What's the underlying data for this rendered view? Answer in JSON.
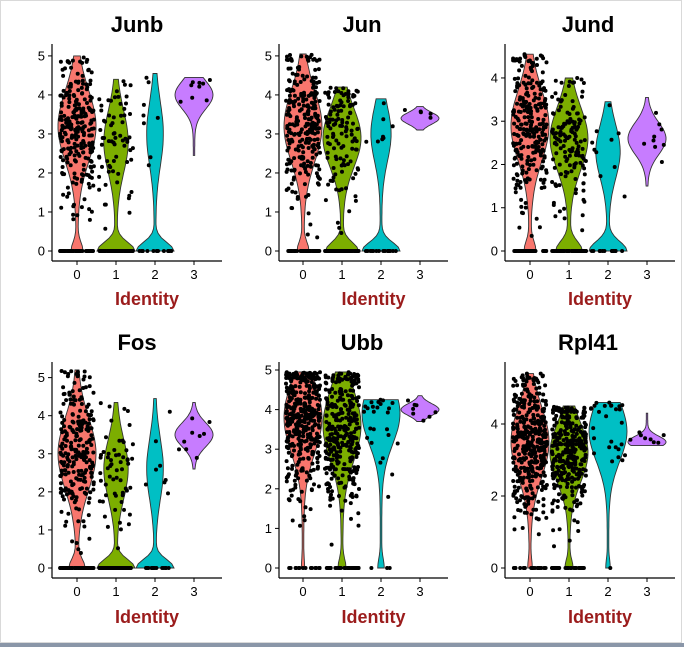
{
  "chart_data": [
    {
      "type": "violin",
      "title": "Junb",
      "xlabel": "Identity",
      "ylabel": "",
      "categories": [
        "0",
        "1",
        "2",
        "3"
      ],
      "yticks": [
        "0",
        "1",
        "2",
        "3",
        "4",
        "5"
      ],
      "ylim": [
        0,
        5.1
      ],
      "colors": [
        "#F8766D",
        "#7CAE00",
        "#00BFC4",
        "#C77CFF"
      ],
      "groups": [
        {
          "name": "0",
          "min": 0,
          "max": 5.0,
          "zero_frac": 0.15,
          "median": 3.2,
          "n_points": 300
        },
        {
          "name": "1",
          "min": 0,
          "max": 4.4,
          "zero_frac": 0.5,
          "median": 2.8,
          "n_points": 140
        },
        {
          "name": "2",
          "min": 0,
          "max": 4.55,
          "zero_frac": 0.6,
          "median": 3.0,
          "n_points": 22
        },
        {
          "name": "3",
          "min": 2.45,
          "max": 4.45,
          "zero_frac": 0,
          "median": 4.0,
          "n_points": 9
        }
      ]
    },
    {
      "type": "violin",
      "title": "Jun",
      "xlabel": "Identity",
      "ylabel": "",
      "categories": [
        "0",
        "1",
        "2",
        "3"
      ],
      "yticks": [
        "0",
        "1",
        "2",
        "3",
        "4",
        "5"
      ],
      "ylim": [
        0,
        5.1
      ],
      "colors": [
        "#F8766D",
        "#7CAE00",
        "#00BFC4",
        "#C77CFF"
      ],
      "groups": [
        {
          "name": "0",
          "min": 0,
          "max": 5.05,
          "zero_frac": 0.15,
          "median": 3.2,
          "n_points": 300
        },
        {
          "name": "1",
          "min": 0,
          "max": 4.2,
          "zero_frac": 0.35,
          "median": 2.9,
          "n_points": 190
        },
        {
          "name": "2",
          "min": 0,
          "max": 3.9,
          "zero_frac": 0.55,
          "median": 3.0,
          "n_points": 24
        },
        {
          "name": "3",
          "min": 3.1,
          "max": 3.7,
          "zero_frac": 0,
          "median": 3.4,
          "n_points": 5
        }
      ]
    },
    {
      "type": "violin",
      "title": "Jund",
      "xlabel": "Identity",
      "ylabel": "",
      "categories": [
        "0",
        "1",
        "2",
        "3"
      ],
      "yticks": [
        "0",
        "1",
        "2",
        "3",
        "4"
      ],
      "ylim": [
        0,
        4.6
      ],
      "colors": [
        "#F8766D",
        "#7CAE00",
        "#00BFC4",
        "#C77CFF"
      ],
      "groups": [
        {
          "name": "0",
          "min": 0,
          "max": 4.55,
          "zero_frac": 0.15,
          "median": 2.9,
          "n_points": 300
        },
        {
          "name": "1",
          "min": 0,
          "max": 4.0,
          "zero_frac": 0.3,
          "median": 2.6,
          "n_points": 200
        },
        {
          "name": "2",
          "min": 0,
          "max": 3.45,
          "zero_frac": 0.5,
          "median": 2.3,
          "n_points": 24
        },
        {
          "name": "3",
          "min": 1.5,
          "max": 3.55,
          "zero_frac": 0,
          "median": 2.6,
          "n_points": 9
        }
      ]
    },
    {
      "type": "violin",
      "title": "Fos",
      "xlabel": "Identity",
      "ylabel": "",
      "categories": [
        "0",
        "1",
        "2",
        "3"
      ],
      "yticks": [
        "0",
        "1",
        "2",
        "3",
        "4",
        "5"
      ],
      "ylim": [
        0,
        5.2
      ],
      "colors": [
        "#F8766D",
        "#7CAE00",
        "#00BFC4",
        "#C77CFF"
      ],
      "groups": [
        {
          "name": "0",
          "min": 0,
          "max": 5.2,
          "zero_frac": 0.2,
          "median": 3.0,
          "n_points": 300
        },
        {
          "name": "1",
          "min": 0,
          "max": 4.35,
          "zero_frac": 0.5,
          "median": 2.6,
          "n_points": 160
        },
        {
          "name": "2",
          "min": 0,
          "max": 4.45,
          "zero_frac": 0.6,
          "median": 2.6,
          "n_points": 22
        },
        {
          "name": "3",
          "min": 2.6,
          "max": 4.35,
          "zero_frac": 0,
          "median": 3.5,
          "n_points": 9
        }
      ]
    },
    {
      "type": "violin",
      "title": "Ubb",
      "xlabel": "Identity",
      "ylabel": "",
      "categories": [
        "0",
        "1",
        "2",
        "3"
      ],
      "yticks": [
        "0",
        "1",
        "2",
        "3",
        "4",
        "5"
      ],
      "ylim": [
        0,
        5.0
      ],
      "colors": [
        "#F8766D",
        "#7CAE00",
        "#00BFC4",
        "#C77CFF"
      ],
      "groups": [
        {
          "name": "0",
          "min": 0,
          "max": 4.95,
          "zero_frac": 0.03,
          "median": 3.8,
          "n_points": 400
        },
        {
          "name": "1",
          "min": 0,
          "max": 4.95,
          "zero_frac": 0.1,
          "median": 3.6,
          "n_points": 350
        },
        {
          "name": "2",
          "min": 0,
          "max": 4.25,
          "zero_frac": 0.08,
          "median": 3.9,
          "n_points": 28
        },
        {
          "name": "3",
          "min": 3.7,
          "max": 4.35,
          "zero_frac": 0,
          "median": 4.0,
          "n_points": 8
        }
      ]
    },
    {
      "type": "violin",
      "title": "Rpl41",
      "xlabel": "Identity",
      "ylabel": "",
      "categories": [
        "0",
        "1",
        "2",
        "3"
      ],
      "yticks": [
        "0",
        "2",
        "4"
      ],
      "ylim": [
        0,
        5.5
      ],
      "colors": [
        "#F8766D",
        "#7CAE00",
        "#00BFC4",
        "#C77CFF"
      ],
      "groups": [
        {
          "name": "0",
          "min": 0,
          "max": 5.4,
          "zero_frac": 0.05,
          "median": 3.5,
          "n_points": 400
        },
        {
          "name": "1",
          "min": 0,
          "max": 4.5,
          "zero_frac": 0.1,
          "median": 3.2,
          "n_points": 350
        },
        {
          "name": "2",
          "min": 0,
          "max": 4.6,
          "zero_frac": 0.05,
          "median": 3.8,
          "n_points": 28
        },
        {
          "name": "3",
          "min": 3.4,
          "max": 4.3,
          "zero_frac": 0,
          "median": 3.5,
          "n_points": 8
        }
      ]
    }
  ]
}
